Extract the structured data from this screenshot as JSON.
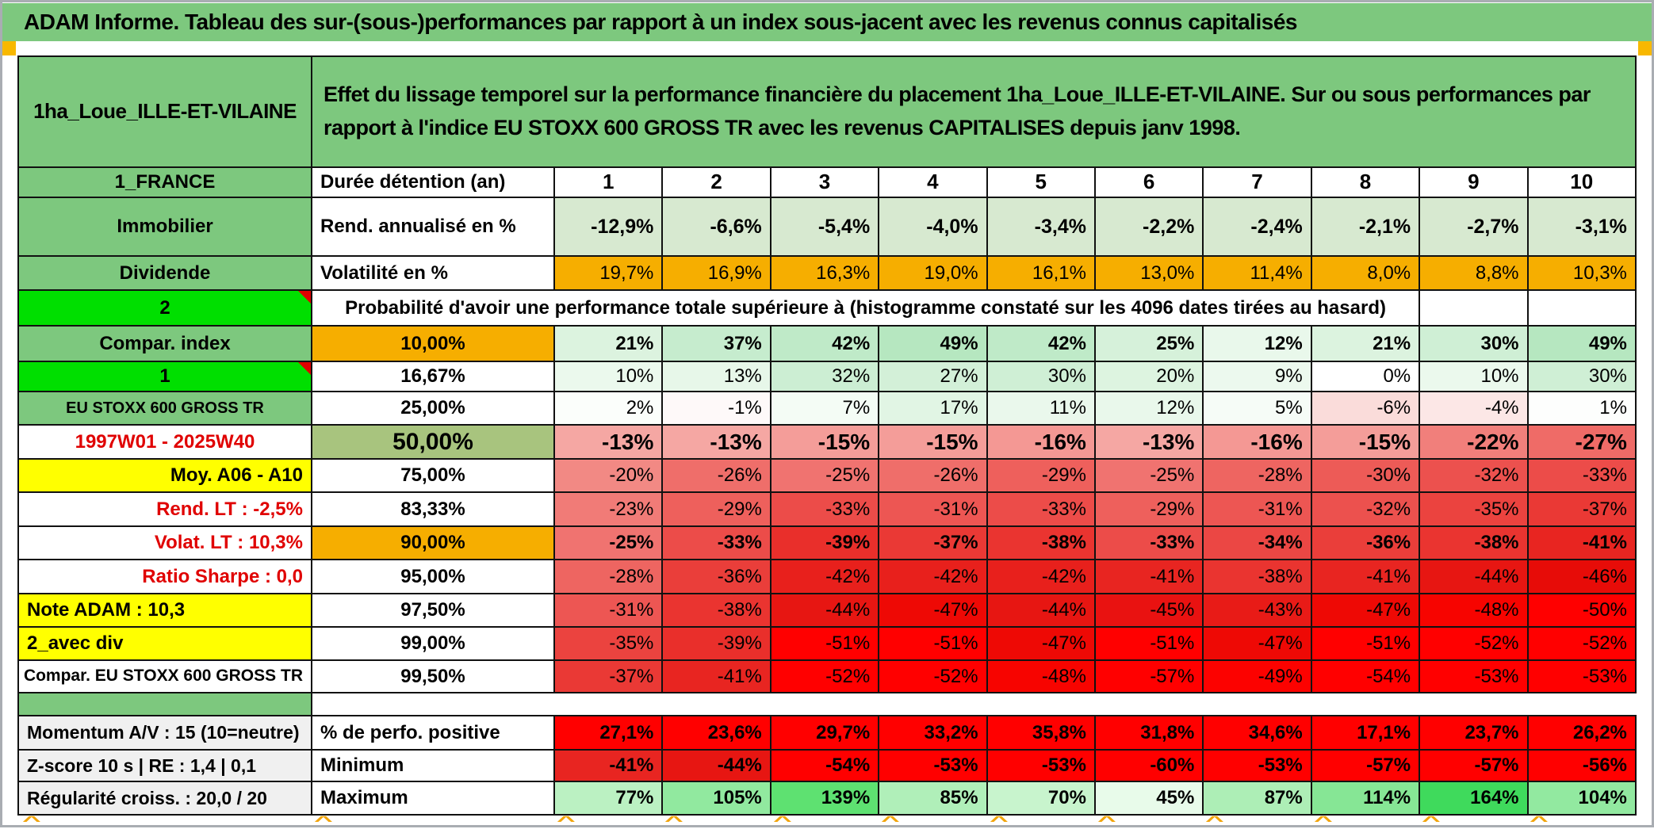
{
  "title": "ADAM Informe. Tableau des sur-(sous-)performances par rapport à un index sous-jacent avec les revenus connus capitalisés",
  "header": {
    "portfolio": "1ha_Loue_ILLE-ET-VILAINE",
    "description": "Effet du lissage temporel sur la performance financière du placement 1ha_Loue_ILLE-ET-VILAINE. Sur ou sous performances par rapport à l'indice EU STOXX 600 GROSS TR avec les revenus CAPITALISES depuis janv 1998."
  },
  "colors": {
    "label_green": "#7DC87E",
    "bright_green": "#00DF00",
    "orange": "#F6AE00",
    "yellow": "#FFFF00",
    "olive_green": "#A8C47E",
    "pale_green": "#D7E9D0",
    "gray_label": "#F0F0F0",
    "pure_red": "#FF0000",
    "red_text": "#E00000",
    "marker_orange": "#F8B800"
  },
  "top_grid": {
    "rows": [
      {
        "label": {
          "t": "1_FRANCE",
          "bg": "#7DC87E",
          "b": true,
          "al": "center",
          "name": "row-label-1-france"
        },
        "col2": {
          "t": "Durée détention (an)",
          "bg": "#FFFFFF",
          "b": true,
          "al": "left",
          "name": "duration-header-cell"
        },
        "vals": [
          "1",
          "2",
          "3",
          "4",
          "5",
          "6",
          "7",
          "8",
          "9",
          "10"
        ],
        "vcols": [
          "#FFFFFF",
          "#FFFFFF",
          "#FFFFFF",
          "#FFFFFF",
          "#FFFFFF",
          "#FFFFFF",
          "#FFFFFF",
          "#FFFFFF",
          "#FFFFFF",
          "#FFFFFF"
        ],
        "vstyle": {
          "b": true,
          "fs": 26,
          "al": "center"
        }
      },
      {
        "label": {
          "t": "Immobilier",
          "bg": "#7DC87E",
          "b": true,
          "al": "center",
          "name": "row-label-immobilier"
        },
        "col2": {
          "t": "Rend. annualisé en %",
          "bg": "#FFFFFF",
          "b": true,
          "al": "left",
          "name": "annualized-return-header-cell"
        },
        "vals": [
          "-12,9%",
          "-6,6%",
          "-5,4%",
          "-4,0%",
          "-3,4%",
          "-2,2%",
          "-2,4%",
          "-2,1%",
          "-2,7%",
          "-3,1%"
        ],
        "vcols": [
          "#D7E9D0",
          "#D7E9D0",
          "#D7E9D0",
          "#D7E9D0",
          "#D7E9D0",
          "#D7E9D0",
          "#D7E9D0",
          "#D7E9D0",
          "#D7E9D0",
          "#D7E9D0"
        ],
        "vstyle": {
          "b": true,
          "fs": 25,
          "al": "right"
        }
      },
      {
        "label": {
          "t": "Dividende",
          "bg": "#7DC87E",
          "b": true,
          "al": "center",
          "name": "row-label-dividende"
        },
        "col2": {
          "t": "Volatilité en %",
          "bg": "#FFFFFF",
          "b": true,
          "al": "left",
          "name": "volatility-header-cell"
        },
        "vals": [
          "19,7%",
          "16,9%",
          "16,3%",
          "19,0%",
          "16,1%",
          "13,0%",
          "11,4%",
          "8,0%",
          "8,8%",
          "10,3%"
        ],
        "vcols": [
          "#F6AE00",
          "#F6AE00",
          "#F6AE00",
          "#F6AE00",
          "#F6AE00",
          "#F6AE00",
          "#F6AE00",
          "#F6AE00",
          "#F6AE00",
          "#F6AE00"
        ],
        "vstyle": {
          "b": false,
          "fs": 24,
          "al": "right"
        }
      },
      {
        "merged": true,
        "label": {
          "t": "2",
          "bg": "#00DF00",
          "b": true,
          "al": "center",
          "mk": true,
          "name": "row-label-2"
        },
        "text": "Probabilité d'avoir une performance totale supérieure à (histogramme constaté sur les 4096 dates tirées au hasard)",
        "span": 9,
        "empties": 2,
        "style": {
          "b": true,
          "fs": 24,
          "al": "center",
          "name": "probability-title-cell"
        }
      },
      {
        "label": {
          "t": "Compar. index",
          "bg": "#7DC87E",
          "b": true,
          "al": "center",
          "name": "row-label-compar-index"
        },
        "col2": {
          "t": "10,00%",
          "bg": "#F6AE00",
          "b": true,
          "al": "center",
          "name": "quantile-10-cell"
        },
        "vals": [
          "21%",
          "37%",
          "42%",
          "49%",
          "42%",
          "25%",
          "12%",
          "21%",
          "30%",
          "49%"
        ],
        "vcols": [
          "#DCF3DF",
          "#C6ECCE",
          "#BFEAC8",
          "#B6E7C0",
          "#BFEAC8",
          "#D6F1DA",
          "#E9F8EB",
          "#DCF3DF",
          "#CFEFD5",
          "#B6E7C0"
        ],
        "vstyle": {
          "b": true,
          "fs": 24,
          "al": "right"
        }
      },
      {
        "label": {
          "t": "1",
          "bg": "#00DF00",
          "b": true,
          "al": "center",
          "mk": true,
          "name": "row-label-1"
        },
        "col2": {
          "t": "16,67%",
          "bg": "#FFFFFF",
          "b": true,
          "al": "center",
          "name": "quantile-1667-cell"
        },
        "vals": [
          "10%",
          "13%",
          "32%",
          "27%",
          "30%",
          "20%",
          "9%",
          "0%",
          "10%",
          "30%"
        ],
        "vcols": [
          "#EBF9ED",
          "#E7F7E9",
          "#CCEED3",
          "#D3F0D8",
          "#CFEFD5",
          "#DDF4E0",
          "#ECF9EE",
          "#FFFFFF",
          "#EBF9ED",
          "#CFEFD5"
        ],
        "vstyle": {
          "b": false,
          "fs": 24,
          "al": "right"
        }
      },
      {
        "label": {
          "t": "EU STOXX 600 GROSS TR",
          "bg": "#7DC87E",
          "b": true,
          "al": "center",
          "fs": 20,
          "name": "row-label-eu-stoxx"
        },
        "col2": {
          "t": "25,00%",
          "bg": "#FFFFFF",
          "b": true,
          "al": "center",
          "name": "quantile-25-cell"
        },
        "vals": [
          "2%",
          "-1%",
          "7%",
          "17%",
          "11%",
          "12%",
          "5%",
          "-6%",
          "-4%",
          "1%"
        ],
        "vcols": [
          "#FBFEFB",
          "#FEF9F9",
          "#F4FCF5",
          "#E1F5E4",
          "#EAF8EC",
          "#E9F8EB",
          "#F6FCF7",
          "#FADCDA",
          "#FCE7E6",
          "#FDFEFD"
        ],
        "vstyle": {
          "b": false,
          "fs": 24,
          "al": "right"
        }
      },
      {
        "label": {
          "t": "1997W01 - 2025W40",
          "bg": "#FFFFFF",
          "fg": "#E00000",
          "b": true,
          "al": "center",
          "name": "row-label-period"
        },
        "col2": {
          "t": "50,00%",
          "bg": "#A8C47E",
          "b": true,
          "al": "center",
          "fs": 30,
          "name": "quantile-50-cell"
        },
        "vals": [
          "-13%",
          "-13%",
          "-15%",
          "-15%",
          "-16%",
          "-13%",
          "-16%",
          "-15%",
          "-22%",
          "-27%"
        ],
        "vcols": [
          "#F5A7A3",
          "#F5A7A3",
          "#F49D99",
          "#F49D99",
          "#F49894",
          "#F5A7A3",
          "#F49894",
          "#F49D99",
          "#F17F7B",
          "#EF6B67"
        ],
        "vstyle": {
          "b": true,
          "fs": 28,
          "al": "right"
        }
      },
      {
        "label": {
          "t": "Moy. A06 - A10",
          "bg": "#FFFF00",
          "b": true,
          "al": "right",
          "name": "row-label-moy-a06-a10"
        },
        "col2": {
          "t": "75,00%",
          "bg": "#FFFFFF",
          "b": true,
          "al": "center",
          "name": "quantile-75-cell"
        },
        "vals": [
          "-20%",
          "-26%",
          "-25%",
          "-26%",
          "-29%",
          "-25%",
          "-28%",
          "-30%",
          "-32%",
          "-33%"
        ],
        "vcols": [
          "#F28984",
          "#EF6E6A",
          "#F07370",
          "#EF6E6A",
          "#EE605C",
          "#F07370",
          "#EE6561",
          "#ED5B57",
          "#EC514E",
          "#EC4C49"
        ],
        "vstyle": {
          "b": false,
          "fs": 24,
          "al": "right"
        }
      },
      {
        "label": {
          "t": "Rend. LT :   -2,5%",
          "bg": "#FFFFFF",
          "fg": "#E00000",
          "b": true,
          "al": "right",
          "name": "row-label-rend-lt"
        },
        "col2": {
          "t": "83,33%",
          "bg": "#FFFFFF",
          "b": true,
          "al": "center",
          "name": "quantile-8333-cell"
        },
        "vals": [
          "-23%",
          "-29%",
          "-33%",
          "-31%",
          "-33%",
          "-29%",
          "-31%",
          "-32%",
          "-35%",
          "-37%"
        ],
        "vcols": [
          "#F17B77",
          "#EE605C",
          "#EC4C49",
          "#ED5653",
          "#EC4C49",
          "#EE605C",
          "#ED5653",
          "#EC514E",
          "#EB433F",
          "#EA3935"
        ],
        "vstyle": {
          "b": false,
          "fs": 24,
          "al": "right"
        }
      },
      {
        "label": {
          "t": "Volat. LT :   10,3%",
          "bg": "#FFFFFF",
          "fg": "#E00000",
          "b": true,
          "al": "right",
          "name": "row-label-volat-lt"
        },
        "col2": {
          "t": "90,00%",
          "bg": "#F6AE00",
          "b": true,
          "al": "center",
          "name": "quantile-90-cell"
        },
        "vals": [
          "-25%",
          "-33%",
          "-39%",
          "-37%",
          "-38%",
          "-33%",
          "-34%",
          "-36%",
          "-38%",
          "-41%"
        ],
        "vcols": [
          "#F07370",
          "#EC4C49",
          "#E92F2B",
          "#EA3935",
          "#EA3430",
          "#EC4C49",
          "#EB4744",
          "#EA3E3A",
          "#EA3430",
          "#E82521"
        ],
        "vstyle": {
          "b": true,
          "fs": 24,
          "al": "right"
        }
      },
      {
        "label": {
          "t": "Ratio Sharpe :   0,0",
          "bg": "#FFFFFF",
          "fg": "#E00000",
          "b": true,
          "al": "right",
          "name": "row-label-ratio-sharpe"
        },
        "col2": {
          "t": "95,00%",
          "bg": "#FFFFFF",
          "b": true,
          "al": "center",
          "name": "quantile-95-cell"
        },
        "vals": [
          "-28%",
          "-36%",
          "-42%",
          "-42%",
          "-42%",
          "-41%",
          "-38%",
          "-41%",
          "-44%",
          "-46%"
        ],
        "vcols": [
          "#EE6561",
          "#EA3E3A",
          "#E8201C",
          "#E8201C",
          "#E8201C",
          "#E82521",
          "#EA3430",
          "#E82521",
          "#E71612",
          "#E70C08"
        ],
        "vstyle": {
          "b": false,
          "fs": 24,
          "al": "right"
        }
      },
      {
        "label": {
          "t": "Note ADAM : 10,3",
          "bg": "#FFFF00",
          "b": true,
          "al": "left",
          "name": "row-label-note-adam"
        },
        "col2": {
          "t": "97,50%",
          "bg": "#FFFFFF",
          "b": true,
          "al": "center",
          "name": "quantile-975-cell"
        },
        "vals": [
          "-31%",
          "-38%",
          "-44%",
          "-47%",
          "-44%",
          "-45%",
          "-43%",
          "-47%",
          "-48%",
          "-50%"
        ],
        "vcols": [
          "#ED5653",
          "#EA3430",
          "#E71612",
          "#EE0905",
          "#E71612",
          "#E91211",
          "#E81B17",
          "#EE0905",
          "#F70400",
          "#FF0000"
        ],
        "vstyle": {
          "b": false,
          "fs": 24,
          "al": "right"
        }
      },
      {
        "label": {
          "t": "2_avec div",
          "bg": "#FFFF00",
          "b": true,
          "al": "left",
          "name": "row-label-2-avec-div"
        },
        "col2": {
          "t": "99,00%",
          "bg": "#FFFFFF",
          "b": true,
          "al": "center",
          "name": "quantile-99-cell"
        },
        "vals": [
          "-35%",
          "-39%",
          "-51%",
          "-51%",
          "-47%",
          "-51%",
          "-47%",
          "-51%",
          "-52%",
          "-52%"
        ],
        "vcols": [
          "#EB433F",
          "#E92F2B",
          "#FF0000",
          "#FF0000",
          "#EE0905",
          "#FF0000",
          "#EE0905",
          "#FF0000",
          "#FF0000",
          "#FF0000"
        ],
        "vstyle": {
          "b": false,
          "fs": 24,
          "al": "right"
        }
      },
      {
        "label": {
          "t": "Compar. EU STOXX 600 GROSS TR",
          "bg": "#FFFFFF",
          "b": true,
          "al": "right",
          "fs": 21,
          "name": "row-label-compar-eu-stoxx"
        },
        "col2": {
          "t": "99,50%",
          "bg": "#FFFFFF",
          "b": true,
          "al": "center",
          "name": "quantile-995-cell"
        },
        "vals": [
          "-37%",
          "-41%",
          "-52%",
          "-52%",
          "-48%",
          "-57%",
          "-49%",
          "-54%",
          "-53%",
          "-53%"
        ],
        "vcols": [
          "#EA3935",
          "#E82521",
          "#FF0000",
          "#FF0000",
          "#F70400",
          "#FF0000",
          "#FC0200",
          "#FF0000",
          "#FF0000",
          "#FF0000"
        ],
        "vstyle": {
          "b": false,
          "fs": 24,
          "al": "right"
        }
      }
    ]
  },
  "bottom_grid": {
    "rows": [
      {
        "label": {
          "t": "Momentum A/V : 15 (10=neutre)",
          "bg": "#F0F0F0",
          "b": true,
          "al": "left",
          "fs": 23,
          "name": "row-label-momentum"
        },
        "col2": {
          "t": "% de perfo. positive",
          "bg": "#FFFFFF",
          "b": true,
          "al": "left",
          "name": "positive-perf-header-cell"
        },
        "vals": [
          "27,1%",
          "23,6%",
          "29,7%",
          "33,2%",
          "35,8%",
          "31,8%",
          "34,6%",
          "17,1%",
          "23,7%",
          "26,2%"
        ],
        "vcols": [
          "#FF0000",
          "#FF0000",
          "#FF0000",
          "#FF0000",
          "#FF0000",
          "#FF0000",
          "#FF0000",
          "#FF0000",
          "#FF0000",
          "#FF0000"
        ],
        "vstyle": {
          "b": true,
          "fs": 24,
          "al": "right"
        }
      },
      {
        "label": {
          "t": "Z-score 10 s | RE : 1,4 | 0,1",
          "bg": "#F0F0F0",
          "b": true,
          "al": "left",
          "fs": 23,
          "name": "row-label-z-score"
        },
        "col2": {
          "t": "Minimum",
          "bg": "#FFFFFF",
          "b": true,
          "al": "left",
          "name": "minimum-header-cell"
        },
        "vals": [
          "-41%",
          "-44%",
          "-54%",
          "-53%",
          "-53%",
          "-60%",
          "-53%",
          "-57%",
          "-57%",
          "-56%"
        ],
        "vcols": [
          "#E82521",
          "#E71612",
          "#FF0000",
          "#FF0000",
          "#FF0000",
          "#FF0000",
          "#FF0000",
          "#FF0000",
          "#FF0000",
          "#FF0000"
        ],
        "vstyle": {
          "b": true,
          "fs": 24,
          "al": "right"
        }
      },
      {
        "label": {
          "t": "Régularité croiss. : 20,0 / 20",
          "bg": "#F0F0F0",
          "b": true,
          "al": "left",
          "fs": 23,
          "name": "row-label-regularite"
        },
        "col2": {
          "t": "Maximum",
          "bg": "#FFFFFF",
          "b": true,
          "al": "left",
          "name": "maximum-header-cell"
        },
        "vals": [
          "77%",
          "105%",
          "139%",
          "85%",
          "70%",
          "45%",
          "87%",
          "114%",
          "164%",
          "104%"
        ],
        "vcols": [
          "#BBF1C2",
          "#91E99F",
          "#5EE171",
          "#B0EFB9",
          "#C8F4CD",
          "#E8FBEA",
          "#ADEEB6",
          "#86E695",
          "#3FDA5C",
          "#92E9A0"
        ],
        "vstyle": {
          "b": true,
          "fs": 24,
          "al": "right"
        }
      }
    ]
  },
  "decorations": {
    "caret_char": "^",
    "caret_positions": [
      28,
      396,
      702,
      838,
      975,
      1111,
      1248,
      1384,
      1520,
      1657,
      1793,
      1929
    ]
  }
}
